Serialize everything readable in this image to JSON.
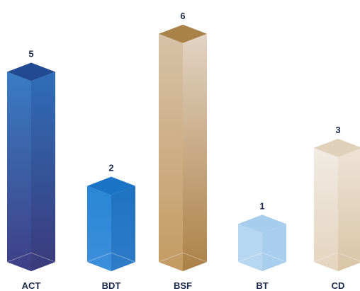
{
  "chart_data": {
    "type": "bar",
    "style": "3d-prism",
    "categories": [
      "ACT",
      "BDT",
      "BSF",
      "BT",
      "CD"
    ],
    "values": [
      5,
      2,
      6,
      1,
      3
    ],
    "ylim": [
      0,
      6
    ],
    "grid": false,
    "legend": "none",
    "colors": {
      "ACT": {
        "top": "#214a93",
        "left": "#3a7cc4",
        "right": "#2f6db8",
        "left_bottom": "#3f3f85",
        "right_bottom": "#3b3a7a",
        "base": "#4a7fc2"
      },
      "BDT": {
        "top": "#1c74c6",
        "left": "#2a86d6",
        "right": "#1f73c2",
        "left_bottom": "#3d8fda",
        "right_bottom": "#2f7cc8",
        "base": "#4a97dd"
      },
      "BSF": {
        "top": "#a9824a",
        "left": "#d6c2a8",
        "right": "#e3d4c4",
        "left_bottom": "#c39b62",
        "right_bottom": "#ab8046",
        "base": "#b88e55"
      },
      "BT": {
        "top": "#a6cdec",
        "left": "#b7d7f1",
        "right": "#a9cdec",
        "left_bottom": "#b7d7f1",
        "right_bottom": "#a9cdec",
        "base": "#c3def3"
      },
      "CD": {
        "top": "#e0d1bb",
        "left": "#f1ebe3",
        "right": "#ede3d6",
        "left_bottom": "#e3d4bd",
        "right_bottom": "#d9c5a6",
        "base": "#e6d8c3"
      }
    }
  }
}
